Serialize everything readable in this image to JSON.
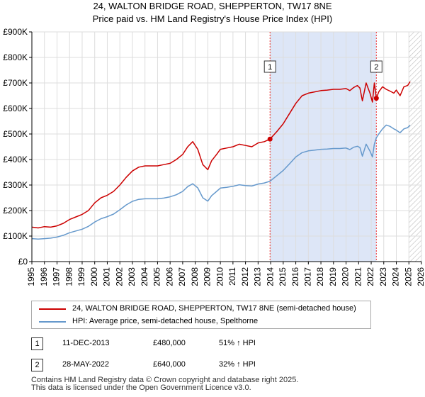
{
  "title_line1": "24, WALTON BRIDGE ROAD, SHEPPERTON, TW17 8NE",
  "title_line2": "Price paid vs. HM Land Registry's House Price Index (HPI)",
  "colors": {
    "property": "#cc0000",
    "hpi": "#6699cc",
    "shade": "#dde6f7",
    "grid": "#dddddd",
    "marker_line": "#ee3333"
  },
  "legend": {
    "property_label": "24, WALTON BRIDGE ROAD, SHEPPERTON, TW17 8NE (semi-detached house)",
    "hpi_label": "HPI: Average price, semi-detached house, Spelthorne"
  },
  "transactions": [
    {
      "num": "1",
      "date": "11-DEC-2013",
      "price": "£480,000",
      "hpi_change": "51% ↑ HPI"
    },
    {
      "num": "2",
      "date": "28-MAY-2022",
      "price": "£640,000",
      "hpi_change": "32% ↑ HPI"
    }
  ],
  "footer_line1": "Contains HM Land Registry data © Crown copyright and database right 2025.",
  "footer_line2": "This data is licensed under the Open Government Licence v3.0.",
  "chart_data": {
    "type": "line",
    "title": "24, WALTON BRIDGE ROAD, SHEPPERTON, TW17 8NE",
    "subtitle": "Price paid vs. HM Land Registry's House Price Index (HPI)",
    "xlabel": "",
    "ylabel": "",
    "xlim": [
      1995,
      2026
    ],
    "ylim": [
      0,
      900000
    ],
    "x_ticks": [
      1995,
      1996,
      1997,
      1998,
      1999,
      2000,
      2001,
      2002,
      2003,
      2004,
      2005,
      2006,
      2007,
      2008,
      2009,
      2010,
      2011,
      2012,
      2013,
      2014,
      2015,
      2016,
      2017,
      2018,
      2019,
      2020,
      2021,
      2022,
      2023,
      2024,
      2025,
      2026
    ],
    "y_ticks": [
      0,
      100000,
      200000,
      300000,
      400000,
      500000,
      600000,
      700000,
      800000,
      900000
    ],
    "y_tick_labels": [
      "£0",
      "£100K",
      "£200K",
      "£300K",
      "£400K",
      "£500K",
      "£600K",
      "£700K",
      "£800K",
      "£900K"
    ],
    "shaded_range": [
      2013.95,
      2022.41
    ],
    "future_hatch_from": 2025.0,
    "series": [
      {
        "name": "24, WALTON BRIDGE ROAD, SHEPPERTON, TW17 8NE (semi-detached house)",
        "color": "#cc0000",
        "x": [
          1995.0,
          1995.5,
          1996.0,
          1996.5,
          1997.0,
          1997.5,
          1998.0,
          1998.5,
          1999.0,
          1999.5,
          2000.0,
          2000.5,
          2001.0,
          2001.5,
          2002.0,
          2002.5,
          2003.0,
          2003.5,
          2004.0,
          2004.5,
          2005.0,
          2005.5,
          2006.0,
          2006.5,
          2007.0,
          2007.4,
          2007.8,
          2008.2,
          2008.6,
          2009.0,
          2009.3,
          2009.7,
          2010.0,
          2010.5,
          2011.0,
          2011.5,
          2012.0,
          2012.5,
          2013.0,
          2013.5,
          2013.95,
          2014.5,
          2015.0,
          2015.5,
          2016.0,
          2016.5,
          2017.0,
          2017.5,
          2018.0,
          2018.5,
          2019.0,
          2019.5,
          2020.0,
          2020.3,
          2020.6,
          2020.9,
          2021.1,
          2021.3,
          2021.6,
          2021.9,
          2022.1,
          2022.25,
          2022.41,
          2022.6,
          2022.9,
          2023.2,
          2023.5,
          2023.8,
          2024.0,
          2024.3,
          2024.6,
          2024.9,
          2025.1
        ],
        "y": [
          135000,
          132000,
          137000,
          135000,
          140000,
          150000,
          165000,
          175000,
          185000,
          200000,
          230000,
          250000,
          260000,
          275000,
          300000,
          330000,
          355000,
          370000,
          375000,
          375000,
          375000,
          380000,
          385000,
          400000,
          420000,
          450000,
          470000,
          440000,
          380000,
          360000,
          395000,
          420000,
          440000,
          445000,
          450000,
          460000,
          455000,
          450000,
          465000,
          470000,
          480000,
          510000,
          540000,
          580000,
          620000,
          650000,
          660000,
          665000,
          670000,
          672000,
          675000,
          675000,
          678000,
          670000,
          682000,
          690000,
          680000,
          630000,
          700000,
          660000,
          625000,
          700000,
          640000,
          665000,
          685000,
          675000,
          668000,
          660000,
          672000,
          650000,
          685000,
          690000,
          705000
        ]
      },
      {
        "name": "HPI: Average price, semi-detached house, Spelthorne",
        "color": "#6699cc",
        "x": [
          1995.0,
          1995.5,
          1996.0,
          1996.5,
          1997.0,
          1997.5,
          1998.0,
          1998.5,
          1999.0,
          1999.5,
          2000.0,
          2000.5,
          2001.0,
          2001.5,
          2002.0,
          2002.5,
          2003.0,
          2003.5,
          2004.0,
          2004.5,
          2005.0,
          2005.5,
          2006.0,
          2006.5,
          2007.0,
          2007.4,
          2007.8,
          2008.2,
          2008.6,
          2009.0,
          2009.3,
          2009.7,
          2010.0,
          2010.5,
          2011.0,
          2011.5,
          2012.0,
          2012.5,
          2013.0,
          2013.5,
          2013.95,
          2014.5,
          2015.0,
          2015.5,
          2016.0,
          2016.5,
          2017.0,
          2017.5,
          2018.0,
          2018.5,
          2019.0,
          2019.5,
          2020.0,
          2020.3,
          2020.6,
          2020.9,
          2021.1,
          2021.3,
          2021.6,
          2021.9,
          2022.1,
          2022.25,
          2022.41,
          2022.6,
          2022.9,
          2023.2,
          2023.5,
          2023.8,
          2024.0,
          2024.3,
          2024.6,
          2024.9,
          2025.1
        ],
        "y": [
          90000,
          88000,
          90000,
          92000,
          96000,
          103000,
          113000,
          120000,
          127000,
          138000,
          155000,
          168000,
          176000,
          186000,
          203000,
          222000,
          236000,
          244000,
          246000,
          246000,
          246000,
          249000,
          254000,
          262000,
          275000,
          294000,
          305000,
          289000,
          250000,
          237000,
          258000,
          275000,
          288000,
          291000,
          295000,
          301000,
          298000,
          296000,
          304000,
          308000,
          315000,
          337000,
          357000,
          383000,
          410000,
          427000,
          434000,
          437000,
          440000,
          441000,
          443000,
          443000,
          445000,
          439000,
          448000,
          452000,
          447000,
          413000,
          460000,
          433000,
          410000,
          460000,
          485000,
          500000,
          520000,
          535000,
          530000,
          520000,
          515000,
          505000,
          520000,
          525000,
          535000
        ]
      }
    ],
    "markers": [
      {
        "label": "1",
        "x": 2013.95,
        "y": 480000
      },
      {
        "label": "2",
        "x": 2022.41,
        "y": 640000
      }
    ]
  }
}
